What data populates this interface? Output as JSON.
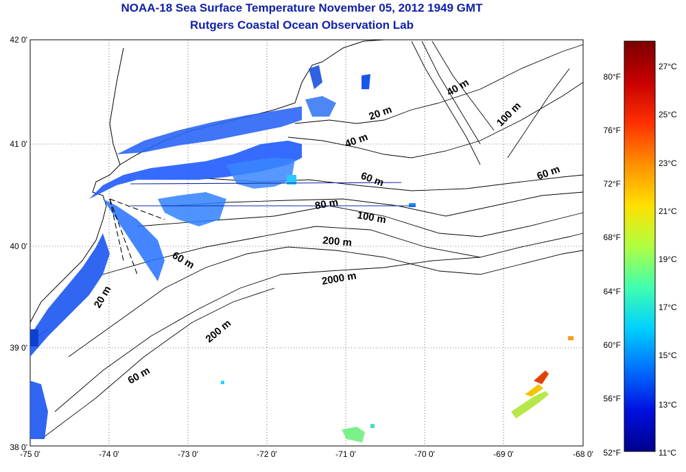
{
  "title": {
    "line1": "NOAA-18 Sea Surface Temperature November 05, 2012 1949 GMT",
    "line2": "Rutgers Coastal Ocean Observation Lab"
  },
  "map": {
    "lon_labels": [
      "-75 0'",
      "-74 0'",
      "-73 0'",
      "-72 0'",
      "-71 0'",
      "-70 0'",
      "-69 0'",
      "-68 0'"
    ],
    "lat_labels": [
      "42 0'",
      "41 0'",
      "40 0'",
      "39 0'",
      "38 0'"
    ],
    "contour_labels": [
      {
        "text": "20 m",
        "rot": -20
      },
      {
        "text": "40 m",
        "rot": -20
      },
      {
        "text": "40 m",
        "rot": -30
      },
      {
        "text": "60 m",
        "rot": 20
      },
      {
        "text": "60 m",
        "rot": -20
      },
      {
        "text": "80 m",
        "rot": -10
      },
      {
        "text": "100 m",
        "rot": 10
      },
      {
        "text": "100 m",
        "rot": -45
      },
      {
        "text": "200 m",
        "rot": 5
      },
      {
        "text": "2000 m",
        "rot": -10
      },
      {
        "text": "60 m",
        "rot": 30
      },
      {
        "text": "20 m",
        "rot": -60
      },
      {
        "text": "200 m",
        "rot": -40
      },
      {
        "text": "60 m",
        "rot": -30
      }
    ]
  },
  "colorbar": {
    "fahrenheit_labels": [
      "80°F",
      "76°F",
      "72°F",
      "68°F",
      "64°F",
      "60°F",
      "56°F",
      "52°F"
    ],
    "celsius_labels": [
      "27°C",
      "25°C",
      "23°C",
      "21°C",
      "19°C",
      "17°C",
      "15°C",
      "13°C",
      "11°C"
    ],
    "colors": [
      "#7a0000",
      "#c80000",
      "#ff3000",
      "#ff9000",
      "#ffe000",
      "#b0ff40",
      "#40ffb0",
      "#00d0ff",
      "#0070ff",
      "#0010e0",
      "#00008a"
    ]
  }
}
